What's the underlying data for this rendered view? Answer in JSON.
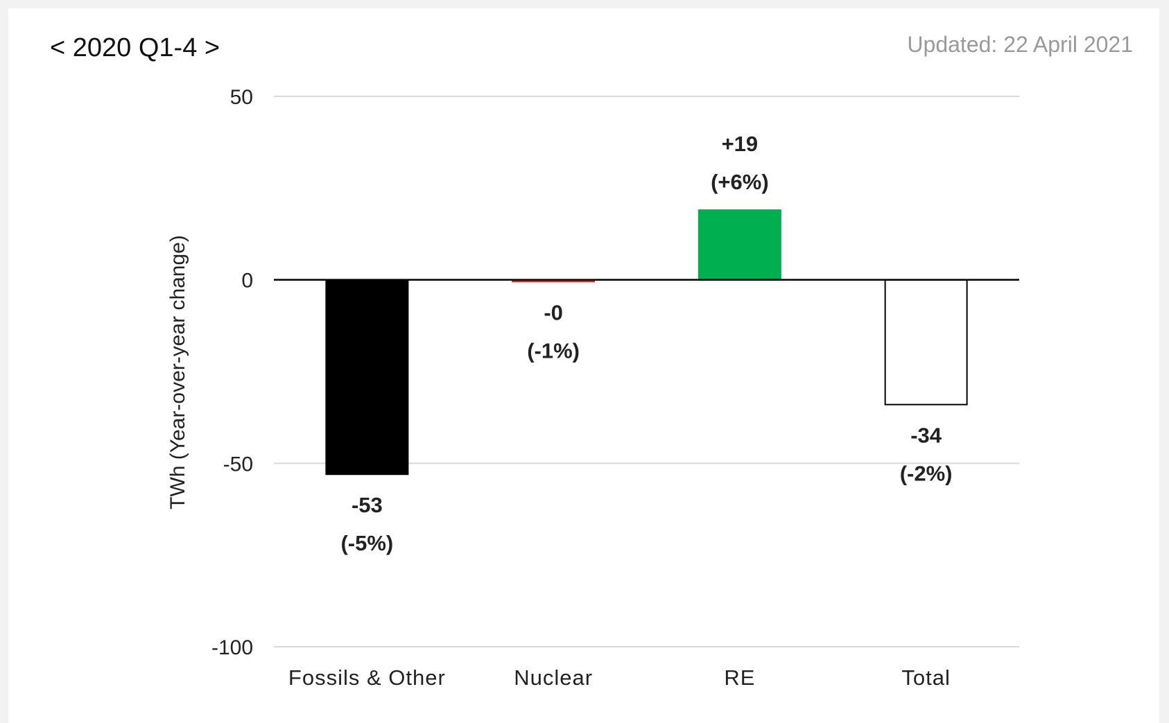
{
  "header": {
    "period": "< 2020 Q1-4 >",
    "updated": "Updated: 22 April 2021"
  },
  "chart_data": {
    "type": "bar",
    "title": "< 2020 Q1-4 >",
    "xlabel": "",
    "ylabel": "TWh (Year-over-year change)",
    "ylim": [
      -100,
      50
    ],
    "yticks": [
      50,
      0,
      -50,
      -100
    ],
    "grid": true,
    "legend": "none",
    "categories": [
      "Fossils & Other",
      "Nuclear",
      "RE",
      "Total"
    ],
    "values": [
      -53,
      -0.5,
      19,
      -34
    ],
    "value_labels": [
      "-53",
      "-0",
      "+19",
      "-34"
    ],
    "percent_labels": [
      "(-5%)",
      "(-1%)",
      "(+6%)",
      "(-2%)"
    ],
    "colors": [
      "#000000",
      "#c0392b",
      "#00b050",
      "#ffffff"
    ],
    "outline_colors": [
      "#000000",
      "#c0392b",
      "#00b050",
      "#000000"
    ]
  }
}
